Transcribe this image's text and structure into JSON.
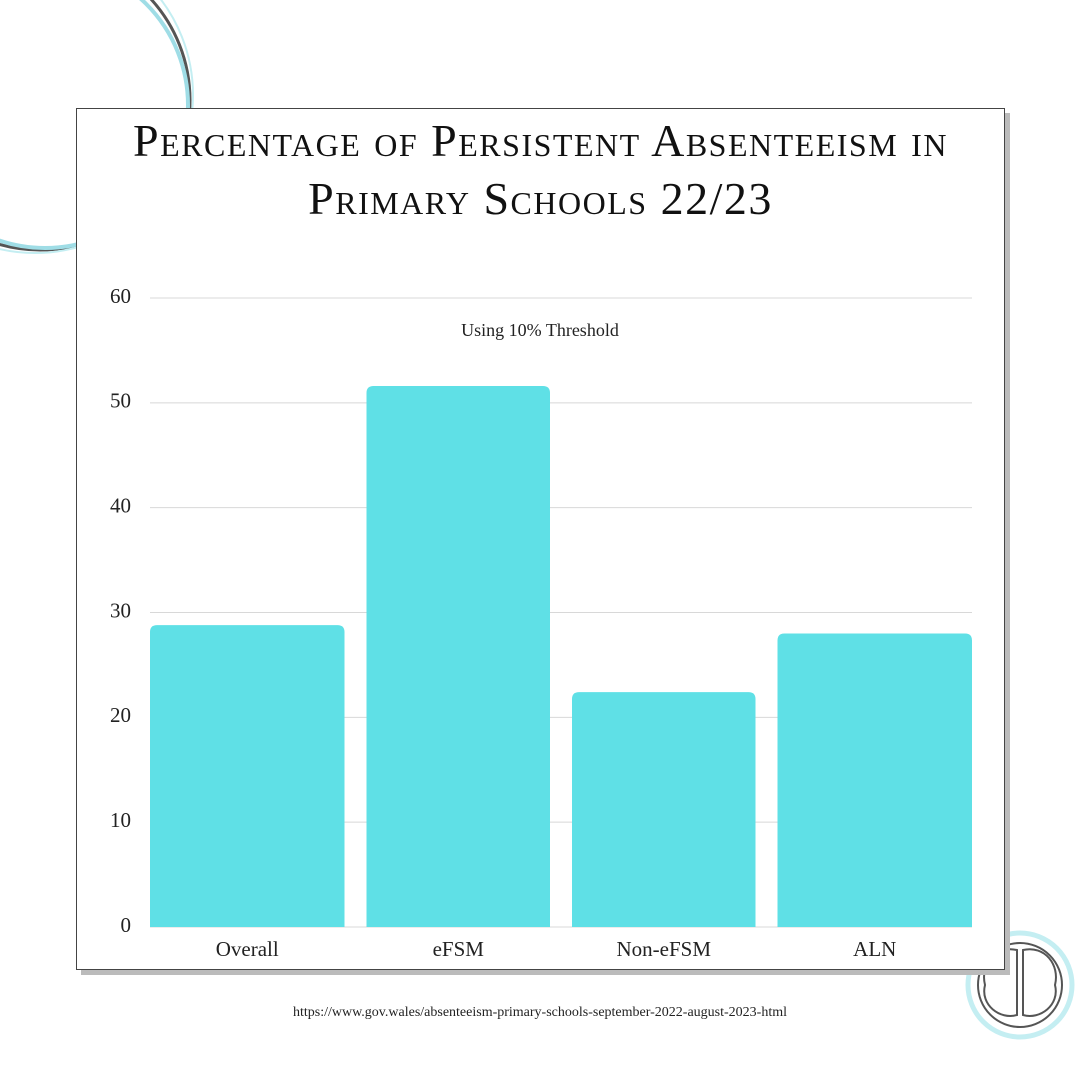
{
  "chart_data": {
    "type": "bar",
    "title": "Percentage of Persistent Absenteeism in Primary Schools 22/23",
    "subtitle": "Using 10% Threshold",
    "categories": [
      "Overall",
      "eFSM",
      "Non-eFSM",
      "ALN"
    ],
    "values": [
      28.8,
      51.6,
      22.4,
      28.0
    ],
    "color": "#5fe0e6",
    "ylim": [
      0,
      60
    ],
    "yticks": [
      0,
      10,
      20,
      30,
      40,
      50,
      60
    ],
    "grid": true,
    "source": "https://www.gov.wales/absenteeism-primary-schools-september-2022-august-2023-html"
  }
}
